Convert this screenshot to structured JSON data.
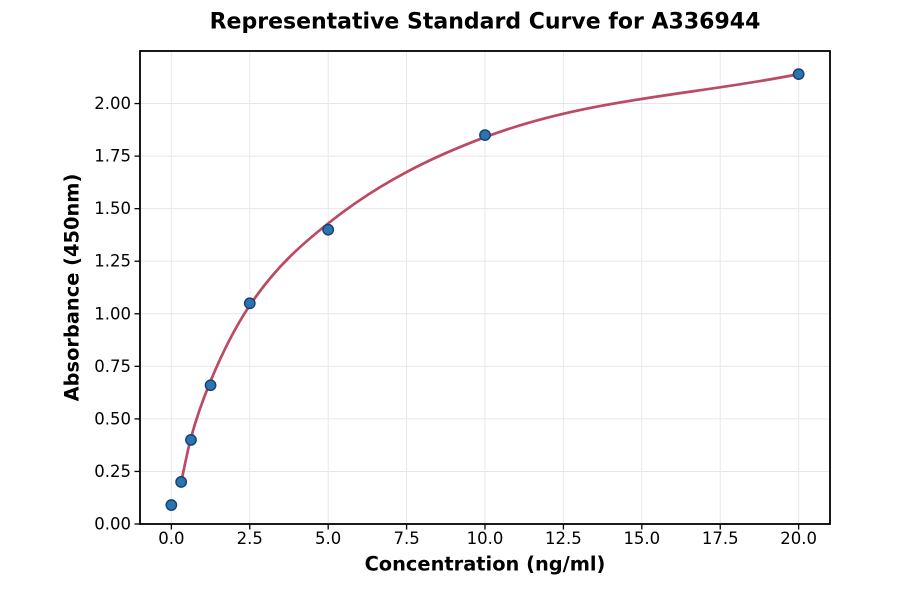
{
  "chart_data": {
    "type": "scatter",
    "title": "Representative Standard Curve for A336944",
    "xlabel": "Concentration (ng/ml)",
    "ylabel": "Absorbance (450nm)",
    "xlim": [
      -1,
      21
    ],
    "ylim": [
      0,
      2.25
    ],
    "xticks": [
      0,
      2.5,
      5,
      7.5,
      10,
      12.5,
      15,
      17.5,
      20
    ],
    "xtick_labels": [
      "0.0",
      "2.5",
      "5.0",
      "7.5",
      "10.0",
      "12.5",
      "15.0",
      "17.5",
      "20.0"
    ],
    "yticks": [
      0,
      0.25,
      0.5,
      0.75,
      1.0,
      1.25,
      1.5,
      1.75,
      2.0
    ],
    "ytick_labels": [
      "0.00",
      "0.25",
      "0.50",
      "0.75",
      "1.00",
      "1.25",
      "1.50",
      "1.75",
      "2.00"
    ],
    "grid": true,
    "legend": null,
    "series": [
      {
        "name": "standard-points",
        "type": "scatter",
        "x": [
          0,
          0.3125,
          0.625,
          1.25,
          2.5,
          5,
          10,
          20
        ],
        "y": [
          0.09,
          0.2,
          0.4,
          0.66,
          1.05,
          1.4,
          1.85,
          2.14
        ]
      },
      {
        "name": "fit-curve",
        "type": "line",
        "x": [
          0.3125,
          0.625,
          1.25,
          2.5,
          5,
          10,
          20
        ],
        "y": [
          0.2,
          0.41,
          0.68,
          1.04,
          1.43,
          1.84,
          2.14
        ]
      }
    ],
    "colors": {
      "curve": "#bc4a62",
      "marker_fill": "#2b74b0",
      "marker_edge": "#15416e",
      "grid": "#e7e7e7",
      "frame": "#000000",
      "text": "#000000"
    }
  }
}
